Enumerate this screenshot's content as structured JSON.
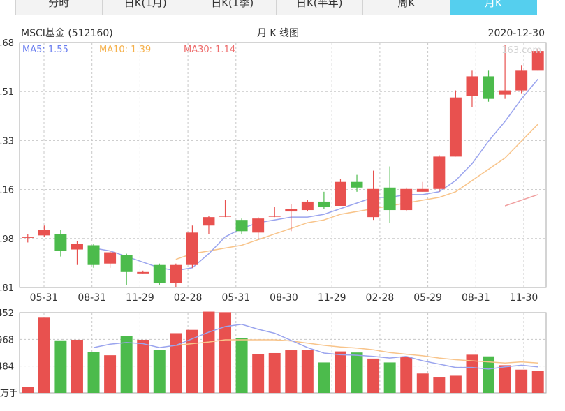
{
  "tabs": [
    {
      "label": "分时",
      "active": false
    },
    {
      "label": "日K(1月)",
      "active": false
    },
    {
      "label": "日K(1季)",
      "active": false
    },
    {
      "label": "日K(半年)",
      "active": false
    },
    {
      "label": "周K",
      "active": false
    },
    {
      "label": "月K",
      "active": true
    }
  ],
  "header": {
    "name": "MSCI基金 (512160)",
    "title": "月 K 线图",
    "date": "2020-12-30"
  },
  "legend": {
    "ma5": "MA5: 1.55",
    "ma10": "MA10: 1.39",
    "ma30": "MA30: 1.14",
    "watermark": "163.com"
  },
  "colors": {
    "up": "#e8514f",
    "down": "#4cbb4c",
    "ma5": "#9aa4ee",
    "ma10": "#f8c48a",
    "ma30": "#f0a0a0",
    "grid": "#c8c8c8"
  },
  "chart_data": {
    "type": "candlestick",
    "price_ticks": [
      ".68",
      ".51",
      ".33",
      ".16",
      ".98",
      ".81"
    ],
    "price_range": [
      0.81,
      1.68
    ],
    "x_labels": [
      "05-31",
      "08-31",
      "11-29",
      "02-28",
      "05-31",
      "08-30",
      "11-29",
      "02-28",
      "05-29",
      "08-31",
      "11-30"
    ],
    "candles": [
      {
        "o": 0.99,
        "c": 0.99,
        "h": 1.0,
        "l": 0.97
      },
      {
        "o": 0.995,
        "c": 1.015,
        "h": 1.03,
        "l": 0.99
      },
      {
        "o": 1.0,
        "c": 0.94,
        "h": 1.015,
        "l": 0.92
      },
      {
        "o": 0.945,
        "c": 0.965,
        "h": 0.975,
        "l": 0.89
      },
      {
        "o": 0.96,
        "c": 0.89,
        "h": 0.965,
        "l": 0.88
      },
      {
        "o": 0.895,
        "c": 0.935,
        "h": 0.94,
        "l": 0.88
      },
      {
        "o": 0.925,
        "c": 0.865,
        "h": 0.93,
        "l": 0.82
      },
      {
        "o": 0.86,
        "c": 0.865,
        "h": 0.87,
        "l": 0.86
      },
      {
        "o": 0.89,
        "c": 0.825,
        "h": 0.895,
        "l": 0.82
      },
      {
        "o": 0.825,
        "c": 0.89,
        "h": 0.895,
        "l": 0.81
      },
      {
        "o": 0.89,
        "c": 1.005,
        "h": 1.03,
        "l": 0.88
      },
      {
        "o": 1.03,
        "c": 1.06,
        "h": 1.065,
        "l": 1.0
      },
      {
        "o": 1.065,
        "c": 1.065,
        "h": 1.12,
        "l": 1.06
      },
      {
        "o": 1.05,
        "c": 1.01,
        "h": 1.055,
        "l": 1.0
      },
      {
        "o": 1.005,
        "c": 1.055,
        "h": 1.06,
        "l": 0.98
      },
      {
        "o": 1.065,
        "c": 1.065,
        "h": 1.095,
        "l": 1.06
      },
      {
        "o": 1.08,
        "c": 1.09,
        "h": 1.105,
        "l": 1.01
      },
      {
        "o": 1.085,
        "c": 1.115,
        "h": 1.12,
        "l": 1.08
      },
      {
        "o": 1.115,
        "c": 1.095,
        "h": 1.15,
        "l": 1.09
      },
      {
        "o": 1.1,
        "c": 1.185,
        "h": 1.195,
        "l": 1.1
      },
      {
        "o": 1.185,
        "c": 1.165,
        "h": 1.21,
        "l": 1.15
      },
      {
        "o": 1.06,
        "c": 1.16,
        "h": 1.225,
        "l": 1.05
      },
      {
        "o": 1.165,
        "c": 1.085,
        "h": 1.24,
        "l": 1.04
      },
      {
        "o": 1.085,
        "c": 1.16,
        "h": 1.165,
        "l": 1.08
      },
      {
        "o": 1.15,
        "c": 1.16,
        "h": 1.185,
        "l": 1.15
      },
      {
        "o": 1.16,
        "c": 1.275,
        "h": 1.28,
        "l": 1.15
      },
      {
        "o": 1.275,
        "c": 1.485,
        "h": 1.51,
        "l": 1.275
      },
      {
        "o": 1.49,
        "c": 1.56,
        "h": 1.58,
        "l": 1.45
      },
      {
        "o": 1.56,
        "c": 1.48,
        "h": 1.58,
        "l": 1.47
      },
      {
        "o": 1.495,
        "c": 1.51,
        "h": 1.67,
        "l": 1.48
      },
      {
        "o": 1.51,
        "c": 1.58,
        "h": 1.6,
        "l": 1.5
      },
      {
        "o": 1.58,
        "c": 1.65,
        "h": 1.66,
        "l": 1.58
      }
    ],
    "ma5": [
      null,
      null,
      null,
      null,
      0.95,
      0.94,
      0.92,
      0.9,
      0.88,
      0.87,
      0.88,
      0.93,
      0.99,
      1.02,
      1.04,
      1.05,
      1.06,
      1.06,
      1.07,
      1.09,
      1.11,
      1.13,
      1.13,
      1.14,
      1.14,
      1.15,
      1.19,
      1.25,
      1.33,
      1.4,
      1.48,
      1.55
    ],
    "ma10": [
      null,
      null,
      null,
      null,
      null,
      null,
      null,
      null,
      null,
      0.91,
      0.93,
      0.94,
      0.95,
      0.96,
      0.98,
      1.0,
      1.02,
      1.04,
      1.05,
      1.07,
      1.08,
      1.09,
      1.1,
      1.11,
      1.12,
      1.13,
      1.15,
      1.19,
      1.23,
      1.27,
      1.33,
      1.39
    ],
    "ma30": [
      null,
      null,
      null,
      null,
      null,
      null,
      null,
      null,
      null,
      null,
      null,
      null,
      null,
      null,
      null,
      null,
      null,
      null,
      null,
      null,
      null,
      null,
      null,
      null,
      null,
      null,
      null,
      null,
      null,
      1.1,
      1.12,
      1.14
    ],
    "volume_ticks": [
      "452",
      "968",
      "484",
      "万手"
    ],
    "volume_max": 1452,
    "volumes": [
      110,
      1360,
      950,
      960,
      740,
      680,
      1030,
      960,
      780,
      1080,
      1140,
      1470,
      1460,
      990,
      700,
      720,
      770,
      780,
      550,
      750,
      730,
      620,
      550,
      650,
      350,
      290,
      310,
      690,
      660,
      500,
      420,
      400
    ],
    "vol_ma5": [
      null,
      null,
      null,
      null,
      820,
      880,
      910,
      890,
      820,
      860,
      980,
      1100,
      1200,
      1240,
      1150,
      1080,
      950,
      820,
      720,
      690,
      680,
      660,
      630,
      660,
      580,
      520,
      460,
      460,
      430,
      470,
      500,
      470
    ],
    "vol_ma10": [
      null,
      null,
      null,
      null,
      null,
      null,
      null,
      null,
      null,
      860,
      890,
      920,
      960,
      960,
      960,
      960,
      940,
      900,
      860,
      830,
      810,
      780,
      730,
      700,
      670,
      630,
      600,
      580,
      560,
      540,
      560,
      540
    ]
  }
}
